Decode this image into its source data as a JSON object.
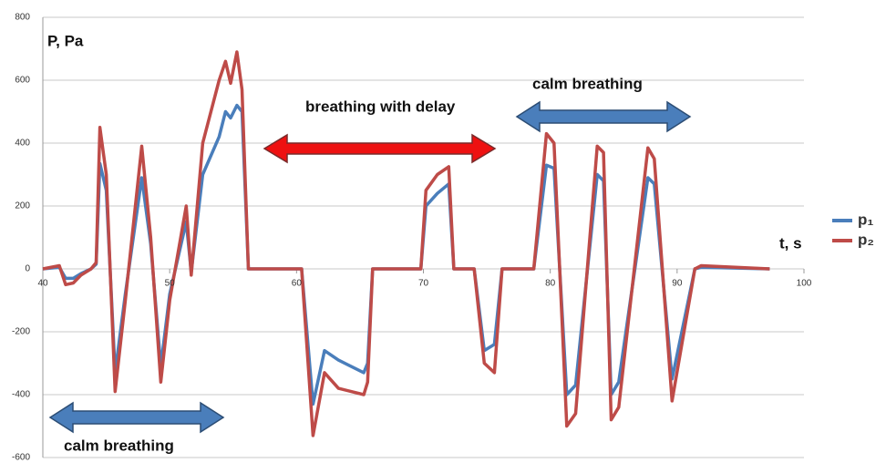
{
  "chart_data": {
    "type": "line",
    "annotations": [
      "P, Pa",
      "t, s",
      "breathing with delay",
      "calm breathing",
      "calm breathing"
    ],
    "x": [
      40,
      41.3,
      41.8,
      42.4,
      43,
      43.8,
      44.2,
      44.5,
      45,
      45.7,
      46.5,
      47.8,
      48.5,
      49.3,
      50,
      51.3,
      51.7,
      52.6,
      53.9,
      54.4,
      54.8,
      55.3,
      55.7,
      56.2,
      60.4,
      61.3,
      62.2,
      63.3,
      65.3,
      65.6,
      66,
      69.8,
      70.2,
      71.1,
      72,
      72.4,
      74,
      74.8,
      75.6,
      76.2,
      78.7,
      79.7,
      80.3,
      81.3,
      82,
      83.7,
      84.2,
      84.8,
      85.4,
      87.7,
      88.2,
      89.6,
      91.4,
      91.9,
      97.3
    ],
    "series": [
      {
        "name": "p₁",
        "color": "#4a7ebb",
        "values": [
          0,
          5,
          -30,
          -30,
          -15,
          0,
          15,
          335,
          250,
          -330,
          -80,
          290,
          80,
          -310,
          -80,
          150,
          -10,
          300,
          420,
          500,
          480,
          520,
          500,
          0,
          0,
          -430,
          -260,
          -290,
          -330,
          -300,
          0,
          0,
          200,
          240,
          270,
          0,
          0,
          -260,
          -240,
          0,
          0,
          330,
          320,
          -400,
          -370,
          300,
          280,
          -400,
          -360,
          290,
          270,
          -350,
          0,
          5,
          0
        ]
      },
      {
        "name": "p₂",
        "color": "#be4b48",
        "values": [
          0,
          10,
          -50,
          -45,
          -20,
          0,
          20,
          450,
          300,
          -390,
          -100,
          390,
          100,
          -360,
          -100,
          200,
          -20,
          400,
          600,
          660,
          590,
          690,
          570,
          0,
          0,
          -530,
          -330,
          -380,
          -400,
          -360,
          0,
          0,
          250,
          300,
          325,
          0,
          0,
          -300,
          -330,
          0,
          0,
          430,
          400,
          -500,
          -460,
          390,
          370,
          -480,
          -440,
          385,
          350,
          -420,
          0,
          10,
          0
        ]
      }
    ],
    "xlim": [
      40,
      100
    ],
    "xticks": [
      40,
      50,
      60,
      70,
      80,
      90,
      100
    ],
    "ylim": [
      -600,
      800
    ],
    "yticks": [
      -600,
      -400,
      -200,
      0,
      200,
      400,
      600,
      800
    ],
    "grid": true,
    "legend": "right"
  }
}
